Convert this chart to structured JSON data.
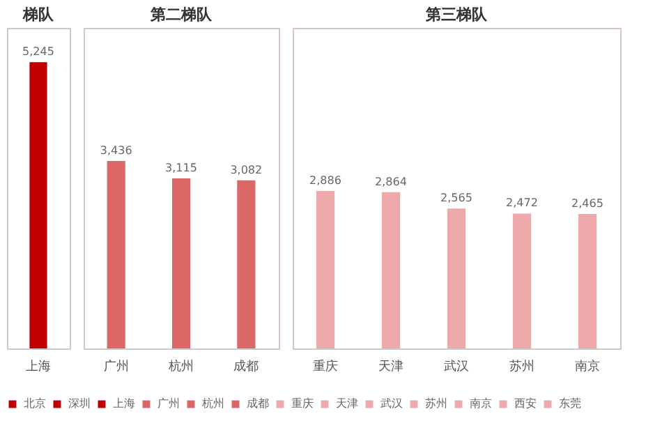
{
  "chart_data": [
    {
      "type": "bar",
      "title": "梯队",
      "categories": [
        "上海"
      ],
      "legend": "bottom",
      "series": [
        {
          "name": "北京",
          "color": "#c00000",
          "values": [
            null
          ]
        },
        {
          "name": "深圳",
          "color": "#c00000",
          "values": [
            null
          ]
        },
        {
          "name": "上海",
          "color": "#c00000",
          "values": [
            5245
          ],
          "value_labels": [
            "5,245"
          ]
        }
      ]
    },
    {
      "type": "bar",
      "title": "第二梯队",
      "categories": [
        "广州",
        "杭州",
        "成都"
      ],
      "legend": "bottom",
      "series": [
        {
          "name": "广州",
          "color": "#dc6767",
          "values": [
            3436,
            null,
            null
          ],
          "value_labels": [
            "3,436",
            null,
            null
          ]
        },
        {
          "name": "杭州",
          "color": "#dc6767",
          "values": [
            null,
            3115,
            null
          ],
          "value_labels": [
            null,
            "3,115",
            null
          ]
        },
        {
          "name": "成都",
          "color": "#dc6767",
          "values": [
            null,
            null,
            3082
          ],
          "value_labels": [
            null,
            null,
            "3,082"
          ]
        }
      ]
    },
    {
      "type": "bar",
      "title": "第三梯队",
      "categories": [
        "重庆",
        "天津",
        "武汉",
        "苏州",
        "南京"
      ],
      "legend": "bottom",
      "series": [
        {
          "name": "重庆",
          "color": "#eeaaaa",
          "values": [
            2886,
            null,
            null,
            null,
            null
          ],
          "value_labels": [
            "2,886",
            null,
            null,
            null,
            null
          ]
        },
        {
          "name": "天津",
          "color": "#eeaaaa",
          "values": [
            null,
            2864,
            null,
            null,
            null
          ],
          "value_labels": [
            null,
            "2,864",
            null,
            null,
            null
          ]
        },
        {
          "name": "武汉",
          "color": "#eeaaaa",
          "values": [
            null,
            null,
            2565,
            null,
            null
          ],
          "value_labels": [
            null,
            null,
            "2,565",
            null,
            null
          ]
        },
        {
          "name": "苏州",
          "color": "#eeaaaa",
          "values": [
            null,
            null,
            null,
            2472,
            null
          ],
          "value_labels": [
            null,
            null,
            null,
            "2,472",
            null
          ]
        },
        {
          "name": "南京",
          "color": "#eeaaaa",
          "values": [
            null,
            null,
            null,
            null,
            2465
          ],
          "value_labels": [
            null,
            null,
            null,
            null,
            "2,465"
          ]
        },
        {
          "name": "西安",
          "color": "#eeaaaa",
          "values": [
            null,
            null,
            null,
            null,
            null
          ]
        },
        {
          "name": "东莞",
          "color": "#eeaaaa",
          "values": [
            null,
            null,
            null,
            null,
            null
          ]
        }
      ]
    }
  ]
}
